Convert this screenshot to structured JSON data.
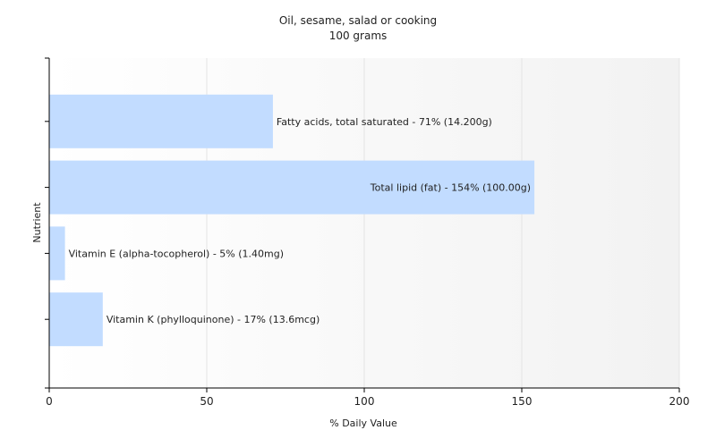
{
  "chart_data": {
    "type": "bar",
    "orientation": "horizontal",
    "title": "Oil, sesame, salad or cooking",
    "subtitle": "100 grams",
    "xlabel": "% Daily Value",
    "ylabel": "Nutrient",
    "xlim": [
      0,
      200
    ],
    "xticks": [
      0,
      50,
      100,
      150,
      200
    ],
    "grid": true,
    "bar_color": "#c2dcff",
    "categories": [
      "Fatty acids, total saturated",
      "Total lipid (fat)",
      "Vitamin E (alpha-tocopherol)",
      "Vitamin K (phylloquinone)"
    ],
    "values": [
      71,
      154,
      5,
      17
    ],
    "labels": [
      "Fatty acids, total saturated - 71% (14.200g)",
      "Total lipid (fat) - 154% (100.00g)",
      "Vitamin E (alpha-tocopherol) - 5% (1.40mg)",
      "Vitamin K (phylloquinone) - 17% (13.6mcg)"
    ]
  }
}
